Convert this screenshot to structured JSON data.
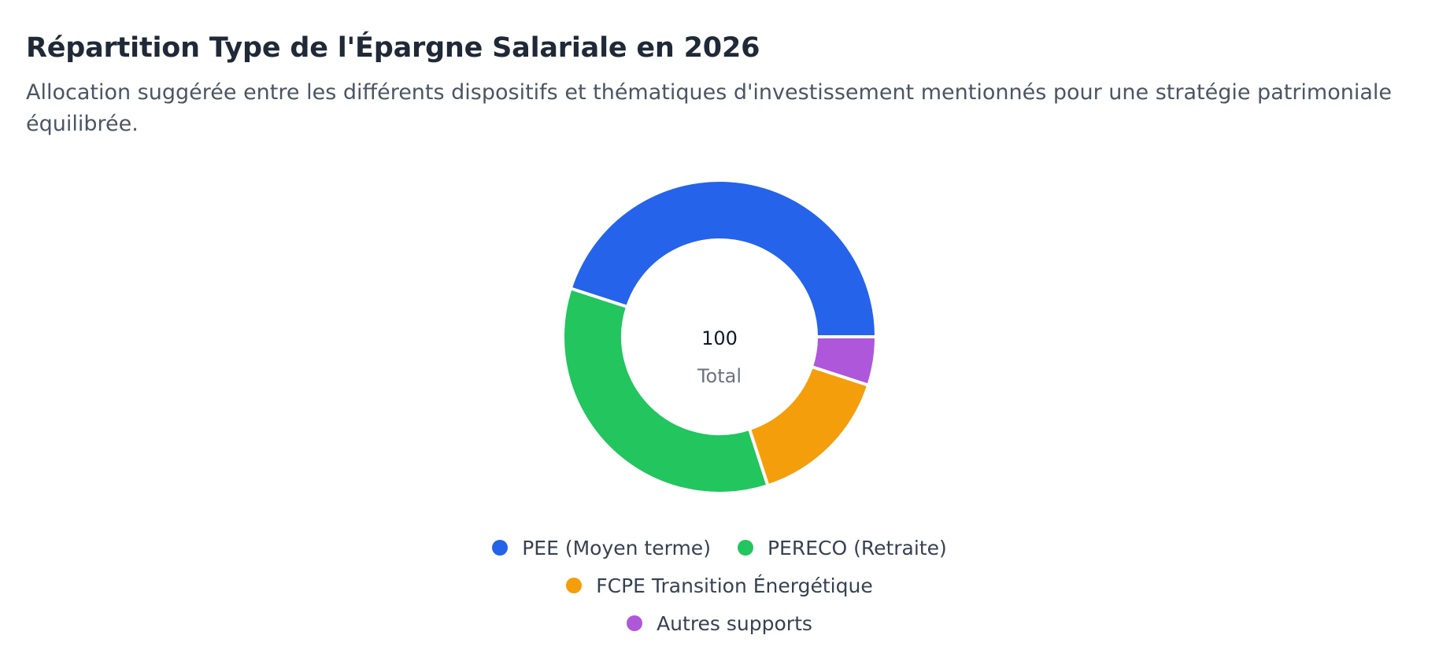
{
  "header": {
    "title": "Répartition Type de l'Épargne Salariale en 2026",
    "subtitle": "Allocation suggérée entre les différents dispositifs et thématiques d'investissement mentionnés pour une stratégie patrimoniale équilibrée."
  },
  "chart_data": {
    "type": "pie",
    "donut": true,
    "center_value": "100",
    "center_label": "Total",
    "categories": [
      "PEE (Moyen terme)",
      "PERECO (Retraite)",
      "FCPE Transition Énergétique",
      "Autres supports"
    ],
    "values": [
      45,
      35,
      15,
      5
    ],
    "colors": [
      "#2563eb",
      "#22c55e",
      "#f59e0b",
      "#af57db"
    ],
    "legend_position": "bottom"
  }
}
